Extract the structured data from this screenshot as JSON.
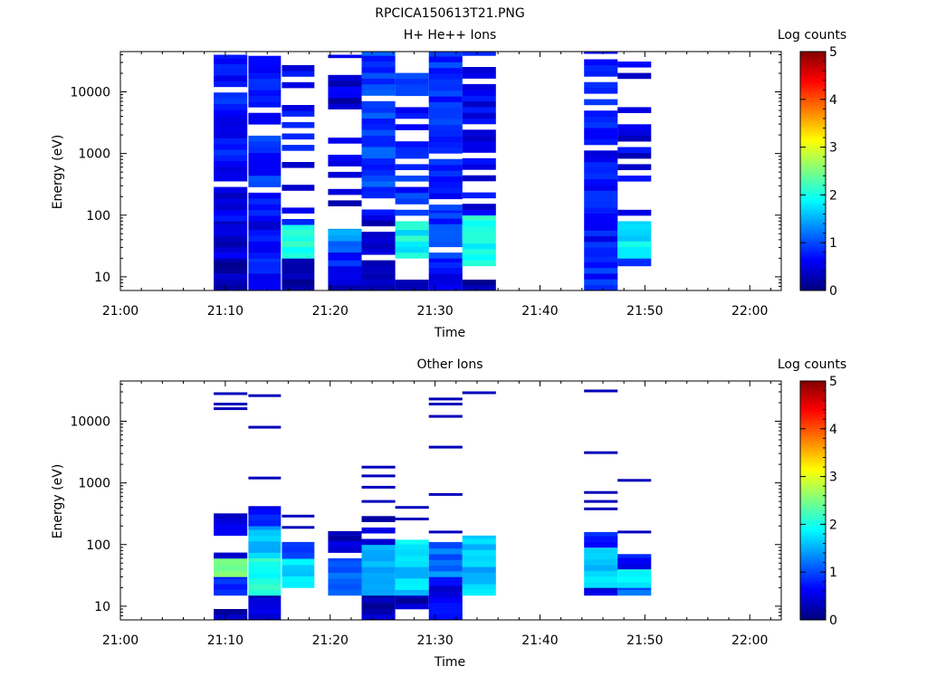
{
  "figure": {
    "title": "RPCICA150613T21.PNG"
  },
  "colors": {
    "background": "#ffffff",
    "axis": "#000000",
    "colormap": [
      "#00007f",
      "#0000ff",
      "#007fff",
      "#00ffff",
      "#7fff7f",
      "#ffff00",
      "#ff7f00",
      "#ff0000",
      "#7f0000"
    ]
  },
  "chart_data": [
    {
      "type": "heatmap",
      "title": "H+ He++ Ions",
      "xlabel": "Time",
      "ylabel": "Energy (eV)",
      "y_scale": "log",
      "ylim": [
        6,
        45000
      ],
      "xlim": [
        "21:00",
        "22:03"
      ],
      "x_ticks": [
        "21:00",
        "21:10",
        "21:20",
        "21:30",
        "21:40",
        "21:50",
        "22:00"
      ],
      "y_ticks": [
        "10",
        "100",
        "1000",
        "10000"
      ],
      "colorbar": {
        "label": "Log counts",
        "min": 0,
        "max": 5,
        "ticks": [
          "0",
          "1",
          "2",
          "3",
          "4",
          "5"
        ]
      },
      "columns": [
        {
          "t0": "21:08.9",
          "t1": "21:12.1",
          "bands": [
            {
              "e0": 6,
              "e1": 20,
              "v": 0.3
            },
            {
              "e0": 20,
              "e1": 80,
              "v": 0.4
            },
            {
              "e0": 80,
              "e1": 400,
              "v": 0.5,
              "sparse": 0.15
            },
            {
              "e0": 400,
              "e1": 40000,
              "v": 0.7,
              "sparse": 0.1
            }
          ]
        },
        {
          "t0": "21:12.2",
          "t1": "21:15.3",
          "bands": [
            {
              "e0": 6,
              "e1": 20,
              "v": 0.7
            },
            {
              "e0": 20,
              "e1": 80,
              "v": 0.6
            },
            {
              "e0": 80,
              "e1": 40000,
              "v": 0.8,
              "sparse": 0.15
            }
          ]
        },
        {
          "t0": "21:15.4",
          "t1": "21:18.5",
          "bands": [
            {
              "e0": 6,
              "e1": 20,
              "v": 0.3
            },
            {
              "e0": 20,
              "e1": 70,
              "v": 2.0
            },
            {
              "e0": 70,
              "e1": 40000,
              "v": 0.6,
              "sparse": 0.5
            }
          ]
        },
        {
          "t0": "21:19.8",
          "t1": "21:23.0",
          "bands": [
            {
              "e0": 6,
              "e1": 15,
              "v": 0.3
            },
            {
              "e0": 15,
              "e1": 25,
              "v": 0.7
            },
            {
              "e0": 25,
              "e1": 60,
              "v": 1.3
            },
            {
              "e0": 60,
              "e1": 40000,
              "v": 0.4,
              "sparse": 0.45
            }
          ]
        },
        {
          "t0": "21:23.0",
          "t1": "21:26.2",
          "bands": [
            {
              "e0": 6,
              "e1": 15,
              "v": 0.3
            },
            {
              "e0": 15,
              "e1": 100,
              "v": 0.4,
              "sparse": 0.2
            },
            {
              "e0": 100,
              "e1": 45000,
              "v": 0.9,
              "sparse": 0.2
            }
          ]
        },
        {
          "t0": "21:26.2",
          "t1": "21:29.4",
          "bands": [
            {
              "e0": 6,
              "e1": 9,
              "v": 0.3
            },
            {
              "e0": 20,
              "e1": 80,
              "v": 1.9
            },
            {
              "e0": 80,
              "e1": 30000,
              "v": 0.8,
              "sparse": 0.4
            }
          ]
        },
        {
          "t0": "21:29.4",
          "t1": "21:32.6",
          "bands": [
            {
              "e0": 6,
              "e1": 20,
              "v": 0.6
            },
            {
              "e0": 20,
              "e1": 120,
              "v": 0.9,
              "sparse": 0.2
            },
            {
              "e0": 120,
              "e1": 45000,
              "v": 0.8,
              "sparse": 0.15
            }
          ]
        },
        {
          "t0": "21:32.6",
          "t1": "21:35.8",
          "bands": [
            {
              "e0": 6,
              "e1": 9,
              "v": 0.3
            },
            {
              "e0": 15,
              "e1": 100,
              "v": 2.0
            },
            {
              "e0": 100,
              "e1": 45000,
              "v": 0.6,
              "sparse": 0.45
            }
          ]
        },
        {
          "t0": "21:44.2",
          "t1": "21:47.4",
          "bands": [
            {
              "e0": 6,
              "e1": 30,
              "v": 0.8
            },
            {
              "e0": 30,
              "e1": 45000,
              "v": 0.7,
              "sparse": 0.15
            }
          ]
        },
        {
          "t0": "21:47.4",
          "t1": "21:50.6",
          "bands": [
            {
              "e0": 15,
              "e1": 20,
              "v": 0.8
            },
            {
              "e0": 20,
              "e1": 80,
              "v": 1.8
            },
            {
              "e0": 80,
              "e1": 35000,
              "v": 0.5,
              "sparse": 0.5
            }
          ]
        }
      ]
    },
    {
      "type": "heatmap",
      "title": "Other Ions",
      "xlabel": "Time",
      "ylabel": "Energy (eV)",
      "y_scale": "log",
      "ylim": [
        6,
        45000
      ],
      "xlim": [
        "21:00",
        "22:03"
      ],
      "x_ticks": [
        "21:00",
        "21:10",
        "21:20",
        "21:30",
        "21:40",
        "21:50",
        "22:00"
      ],
      "y_ticks": [
        "10",
        "100",
        "1000",
        "10000"
      ],
      "colorbar": {
        "label": "Log counts",
        "min": 0,
        "max": 5,
        "ticks": [
          "0",
          "1",
          "2",
          "3",
          "4",
          "5"
        ]
      },
      "columns": [
        {
          "t0": "21:08.9",
          "t1": "21:12.1",
          "bands": [
            {
              "e0": 6,
              "e1": 9,
              "v": 0.3
            },
            {
              "e0": 15,
              "e1": 30,
              "v": 0.9
            },
            {
              "e0": 30,
              "e1": 60,
              "v": 2.3
            },
            {
              "e0": 60,
              "e1": 320,
              "v": 0.4,
              "sparse": 0.4
            }
          ],
          "lines": [
            16000,
            19000,
            28000
          ]
        },
        {
          "t0": "21:12.2",
          "t1": "21:15.3",
          "bands": [
            {
              "e0": 6,
              "e1": 15,
              "v": 0.3
            },
            {
              "e0": 15,
              "e1": 60,
              "v": 2.0
            },
            {
              "e0": 60,
              "e1": 200,
              "v": 1.5
            },
            {
              "e0": 200,
              "e1": 420,
              "v": 0.6
            }
          ],
          "lines": [
            1200,
            8000,
            26000
          ]
        },
        {
          "t0": "21:15.4",
          "t1": "21:18.5",
          "bands": [
            {
              "e0": 20,
              "e1": 60,
              "v": 1.7
            },
            {
              "e0": 60,
              "e1": 110,
              "v": 0.9
            }
          ],
          "lines": [
            190,
            290
          ]
        },
        {
          "t0": "21:19.8",
          "t1": "21:23.0",
          "bands": [
            {
              "e0": 15,
              "e1": 60,
              "v": 1.0
            },
            {
              "e0": 60,
              "e1": 165,
              "v": 0.4,
              "sparse": 0.35
            }
          ]
        },
        {
          "t0": "21:23.0",
          "t1": "21:26.2",
          "bands": [
            {
              "e0": 6,
              "e1": 15,
              "v": 0.3
            },
            {
              "e0": 15,
              "e1": 100,
              "v": 1.6
            },
            {
              "e0": 100,
              "e1": 300,
              "v": 0.4,
              "sparse": 0.4
            }
          ],
          "lines": [
            500,
            850,
            1300,
            1800
          ]
        },
        {
          "t0": "21:26.2",
          "t1": "21:29.4",
          "bands": [
            {
              "e0": 9,
              "e1": 15,
              "v": 0.3
            },
            {
              "e0": 15,
              "e1": 120,
              "v": 1.7
            }
          ],
          "lines": [
            260,
            400
          ]
        },
        {
          "t0": "21:29.4",
          "t1": "21:32.6",
          "bands": [
            {
              "e0": 6,
              "e1": 30,
              "v": 0.5
            },
            {
              "e0": 30,
              "e1": 110,
              "v": 1.2
            }
          ],
          "lines": [
            160,
            650,
            3800,
            12000,
            19000,
            23000
          ]
        },
        {
          "t0": "21:32.6",
          "t1": "21:35.8",
          "bands": [
            {
              "e0": 15,
              "e1": 140,
              "v": 1.6
            }
          ],
          "lines": [
            29000
          ]
        },
        {
          "t0": "21:44.2",
          "t1": "21:47.4",
          "bands": [
            {
              "e0": 15,
              "e1": 20,
              "v": 0.3
            },
            {
              "e0": 20,
              "e1": 90,
              "v": 1.6
            },
            {
              "e0": 90,
              "e1": 160,
              "v": 0.7
            }
          ],
          "lines": [
            380,
            500,
            700,
            3100,
            31000
          ]
        },
        {
          "t0": "21:47.4",
          "t1": "21:50.6",
          "bands": [
            {
              "e0": 15,
              "e1": 20,
              "v": 1.0
            },
            {
              "e0": 20,
              "e1": 40,
              "v": 1.9
            },
            {
              "e0": 40,
              "e1": 70,
              "v": 0.6
            }
          ],
          "lines": [
            160,
            1100
          ]
        }
      ]
    }
  ]
}
